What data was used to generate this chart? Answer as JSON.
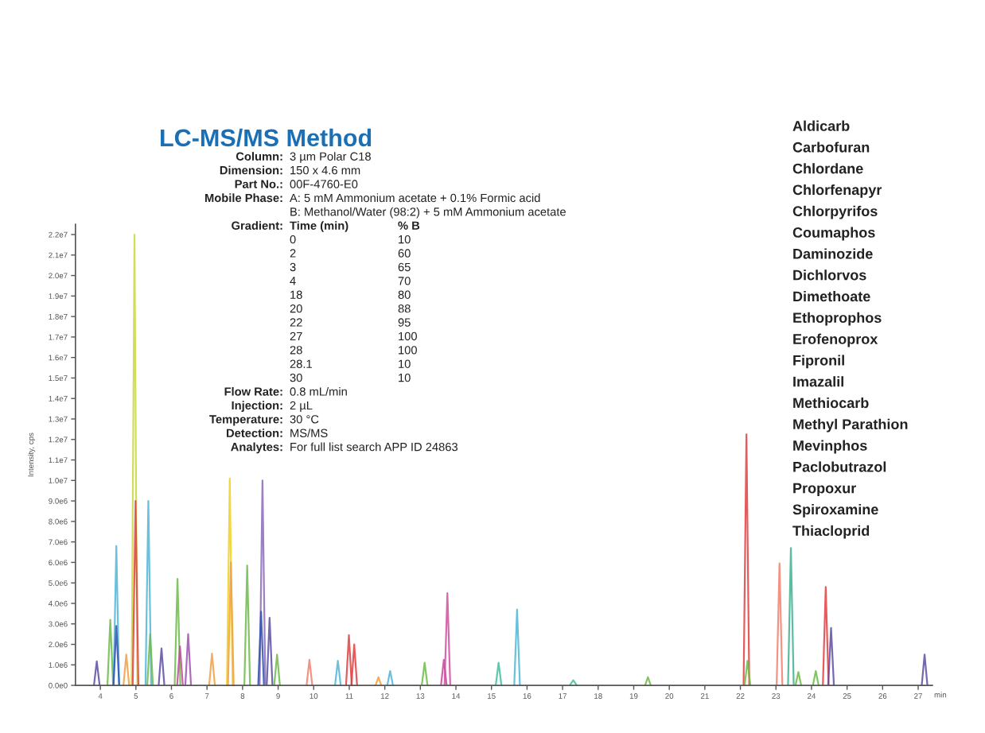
{
  "chart_data": {
    "type": "line",
    "title": "LC-MS/MS Method",
    "ylabel": "Intensity, cps",
    "xlabel": "min",
    "xlim": [
      3.3,
      27.4
    ],
    "xticks": [
      4,
      5,
      6,
      7,
      8,
      9,
      10,
      11,
      12,
      13,
      14,
      15,
      16,
      17,
      18,
      19,
      20,
      21,
      22,
      23,
      24,
      25,
      26,
      27
    ],
    "ylim": [
      0,
      22500000
    ],
    "yticks": [
      {
        "value": 0,
        "label": "0.0e0"
      },
      {
        "value": 1000000,
        "label": "1.0e6"
      },
      {
        "value": 2000000,
        "label": "2.0e6"
      },
      {
        "value": 3000000,
        "label": "3.0e6"
      },
      {
        "value": 4000000,
        "label": "4.0e6"
      },
      {
        "value": 5000000,
        "label": "5.0e6"
      },
      {
        "value": 6000000,
        "label": "6.0e6"
      },
      {
        "value": 7000000,
        "label": "7.0e6"
      },
      {
        "value": 8000000,
        "label": "8.0e6"
      },
      {
        "value": 9000000,
        "label": "9.0e6"
      },
      {
        "value": 10000000,
        "label": "1.0e7"
      },
      {
        "value": 11000000,
        "label": "1.1e7"
      },
      {
        "value": 12000000,
        "label": "1.2e7"
      },
      {
        "value": 13000000,
        "label": "1.3e7"
      },
      {
        "value": 14000000,
        "label": "1.4e7"
      },
      {
        "value": 15000000,
        "label": "1.5e7"
      },
      {
        "value": 16000000,
        "label": "1.6e7"
      },
      {
        "value": 17000000,
        "label": "1.7e7"
      },
      {
        "value": 18000000,
        "label": "1.8e7"
      },
      {
        "value": 19000000,
        "label": "1.9e7"
      },
      {
        "value": 20000000,
        "label": "2.0e7"
      },
      {
        "value": 21000000,
        "label": "2.1e7"
      },
      {
        "value": 22000000,
        "label": "2.2e7"
      }
    ],
    "grid": false,
    "marker": "none",
    "line_style": "solid",
    "series": [
      {
        "color": "#5b4ea3",
        "x": [
          3.82,
          3.9,
          3.98
        ],
        "values": [
          0,
          1170000,
          0
        ]
      },
      {
        "color": "#6dbb4a",
        "x": [
          4.2,
          4.28,
          4.36
        ],
        "values": [
          0,
          3200000,
          0
        ]
      },
      {
        "color": "#4fb6d8",
        "x": [
          4.37,
          4.45,
          4.53
        ],
        "values": [
          0,
          6800000,
          0
        ]
      },
      {
        "color": "#3050b0",
        "x": [
          4.37,
          4.45,
          4.53
        ],
        "values": [
          0,
          2900000,
          0
        ]
      },
      {
        "color": "#f0a040",
        "x": [
          4.65,
          4.73,
          4.81
        ],
        "values": [
          0,
          1500000,
          0
        ]
      },
      {
        "color": "#c8d840",
        "x": [
          4.88,
          4.96,
          5.04
        ],
        "values": [
          0,
          22000000,
          0
        ]
      },
      {
        "color": "#e04040",
        "x": [
          4.91,
          4.99,
          5.07
        ],
        "values": [
          0,
          9000000,
          0
        ]
      },
      {
        "color": "#4fb6d8",
        "x": [
          5.27,
          5.35,
          5.43
        ],
        "values": [
          0,
          9000000,
          0
        ]
      },
      {
        "color": "#6dbb4a",
        "x": [
          5.32,
          5.4,
          5.48
        ],
        "values": [
          0,
          2500000,
          0
        ]
      },
      {
        "color": "#5b4ea3",
        "x": [
          5.64,
          5.72,
          5.8
        ],
        "values": [
          0,
          1800000,
          0
        ]
      },
      {
        "color": "#6dbb4a",
        "x": [
          6.09,
          6.17,
          6.25
        ],
        "values": [
          0,
          5200000,
          0
        ]
      },
      {
        "color": "#c04a9a",
        "x": [
          6.16,
          6.24,
          6.32
        ],
        "values": [
          0,
          1900000,
          0
        ]
      },
      {
        "color": "#a050b0",
        "x": [
          6.39,
          6.47,
          6.55
        ],
        "values": [
          0,
          2500000,
          0
        ]
      },
      {
        "color": "#f0a040",
        "x": [
          7.06,
          7.14,
          7.22
        ],
        "values": [
          0,
          1550000,
          0
        ]
      },
      {
        "color": "#f0d020",
        "x": [
          7.56,
          7.64,
          7.72
        ],
        "values": [
          0,
          10100000,
          0
        ]
      },
      {
        "color": "#f0a040",
        "x": [
          7.59,
          7.67,
          7.75
        ],
        "values": [
          0,
          6000000,
          0
        ]
      },
      {
        "color": "#6dbb4a",
        "x": [
          8.05,
          8.13,
          8.21
        ],
        "values": [
          0,
          5850000,
          0
        ]
      },
      {
        "color": "#8a6ab8",
        "x": [
          8.48,
          8.56,
          8.64
        ],
        "values": [
          0,
          10000000,
          0
        ]
      },
      {
        "color": "#3050b0",
        "x": [
          8.44,
          8.52,
          8.6
        ],
        "values": [
          0,
          3600000,
          0
        ]
      },
      {
        "color": "#5b4ea3",
        "x": [
          8.68,
          8.76,
          8.84
        ],
        "values": [
          0,
          3300000,
          0
        ]
      },
      {
        "color": "#6dbb4a",
        "x": [
          8.89,
          8.97,
          9.05
        ],
        "values": [
          0,
          1500000,
          0
        ]
      },
      {
        "color": "#f08070",
        "x": [
          9.8,
          9.88,
          9.96
        ],
        "values": [
          0,
          1250000,
          0
        ]
      },
      {
        "color": "#4fb6d8",
        "x": [
          10.6,
          10.68,
          10.76
        ],
        "values": [
          0,
          1200000,
          0
        ]
      },
      {
        "color": "#e04040",
        "x": [
          10.91,
          10.99,
          11.07
        ],
        "values": [
          0,
          2450000,
          0
        ]
      },
      {
        "color": "#e04040",
        "x": [
          11.06,
          11.14,
          11.22
        ],
        "values": [
          0,
          2000000,
          0
        ]
      },
      {
        "color": "#f0a040",
        "x": [
          11.74,
          11.82,
          11.9
        ],
        "values": [
          0,
          400000,
          0
        ]
      },
      {
        "color": "#4fb6d8",
        "x": [
          12.07,
          12.15,
          12.23
        ],
        "values": [
          0,
          700000,
          0
        ]
      },
      {
        "color": "#6dbb4a",
        "x": [
          13.04,
          13.12,
          13.2
        ],
        "values": [
          0,
          1100000,
          0
        ]
      },
      {
        "color": "#c04a9a",
        "x": [
          13.58,
          13.66,
          13.74
        ],
        "values": [
          0,
          1250000,
          0
        ]
      },
      {
        "color": "#d050a0",
        "x": [
          13.68,
          13.76,
          13.84
        ],
        "values": [
          0,
          4500000,
          0
        ]
      },
      {
        "color": "#40c0a0",
        "x": [
          15.12,
          15.2,
          15.28
        ],
        "values": [
          0,
          1100000,
          0
        ]
      },
      {
        "color": "#4fb6d8",
        "x": [
          15.64,
          15.72,
          15.8
        ],
        "values": [
          0,
          3700000,
          0
        ]
      },
      {
        "color": "#40c0a0",
        "x": [
          17.2,
          17.3,
          17.4
        ],
        "values": [
          0,
          250000,
          0
        ]
      },
      {
        "color": "#6dbb4a",
        "x": [
          19.32,
          19.4,
          19.48
        ],
        "values": [
          0,
          400000,
          0
        ]
      },
      {
        "color": "#e04040",
        "x": [
          22.09,
          22.17,
          22.25
        ],
        "values": [
          0,
          12250000,
          0
        ]
      },
      {
        "color": "#6dbb4a",
        "x": [
          22.12,
          22.2,
          22.28
        ],
        "values": [
          0,
          1200000,
          0
        ]
      },
      {
        "color": "#f08070",
        "x": [
          23.02,
          23.1,
          23.18
        ],
        "values": [
          0,
          5950000,
          0
        ]
      },
      {
        "color": "#40b090",
        "x": [
          23.34,
          23.42,
          23.5
        ],
        "values": [
          0,
          6700000,
          0
        ]
      },
      {
        "color": "#6dbb4a",
        "x": [
          23.55,
          23.63,
          23.71
        ],
        "values": [
          0,
          650000,
          0
        ]
      },
      {
        "color": "#6dbb4a",
        "x": [
          24.04,
          24.12,
          24.2
        ],
        "values": [
          0,
          700000,
          0
        ]
      },
      {
        "color": "#e04040",
        "x": [
          24.32,
          24.4,
          24.48
        ],
        "values": [
          0,
          4800000,
          0
        ]
      },
      {
        "color": "#5b4ea3",
        "x": [
          24.47,
          24.55,
          24.63
        ],
        "values": [
          0,
          2800000,
          0
        ]
      },
      {
        "color": "#5b4ea3",
        "x": [
          27.1,
          27.18,
          27.26
        ],
        "values": [
          0,
          1500000,
          0
        ]
      }
    ],
    "annotations": [
      "Column: 3 µm Polar C18",
      "Dimension: 150 x 4.6 mm",
      "Part No.: 00F-4760-E0",
      "Mobile Phase: A: 5 mM Ammonium acetate + 0.1% Formic acid\nB: Methanol/Water (98:2) + 5 mM Ammonium acetate",
      "Gradient: Time (min) % B\n0 10\n2 60\n3 65\n4 70\n18 80\n20 88\n22 95\n27 100\n28 100\n28.1 10\n30 10",
      "Flow Rate: 0.8 mL/min",
      "Injection: 2 µL",
      "Temperature: 30 °C",
      "Detection: MS/MS",
      "Analytes: For full list search APP ID 24863",
      "Aldicarb",
      "Carbofuran",
      "Chlordane",
      "Chlorfenapyr",
      "Chlorpyrifos",
      "Coumaphos",
      "Daminozide",
      "Dichlorvos",
      "Dimethoate",
      "Ethoprophos",
      "Erofenoprox",
      "Fipronil",
      "Imazalil",
      "Methiocarb",
      "Methyl Parathion",
      "Mevinphos",
      "Paclobutrazol",
      "Propoxur",
      "Spiroxamine",
      "Thiacloprid"
    ]
  }
}
